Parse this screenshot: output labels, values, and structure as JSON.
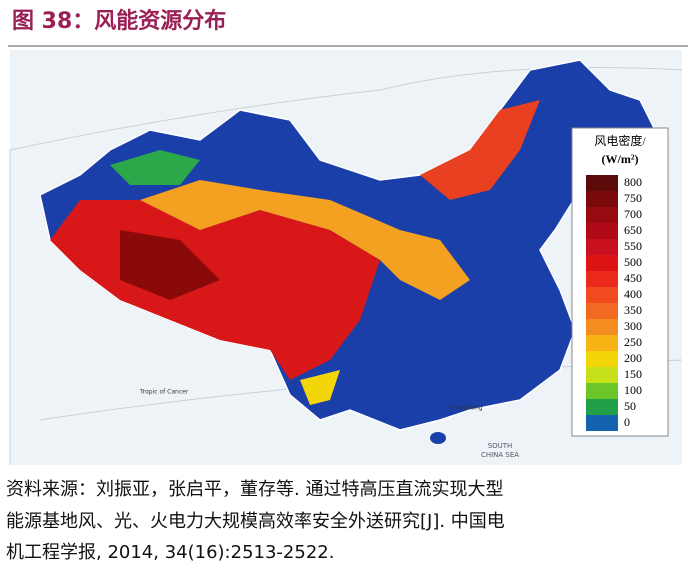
{
  "header": {
    "title": "图 38：风能资源分布"
  },
  "legend": {
    "title": [
      "风电密度/",
      "(W/m²)"
    ],
    "levels": [
      {
        "label": "800",
        "color": "#5c0a0a"
      },
      {
        "label": "750",
        "color": "#7a0a0a"
      },
      {
        "label": "700",
        "color": "#960a10"
      },
      {
        "label": "650",
        "color": "#b00a18"
      },
      {
        "label": "550",
        "color": "#c8101e"
      },
      {
        "label": "500",
        "color": "#dc1414"
      },
      {
        "label": "450",
        "color": "#ec2a1c"
      },
      {
        "label": "400",
        "color": "#f04a1e"
      },
      {
        "label": "350",
        "color": "#f26a22"
      },
      {
        "label": "300",
        "color": "#f48c22"
      },
      {
        "label": "250",
        "color": "#f8b414"
      },
      {
        "label": "200",
        "color": "#f2d60a"
      },
      {
        "label": "150",
        "color": "#c6e01a"
      },
      {
        "label": "100",
        "color": "#6cc62a"
      },
      {
        "label": "50",
        "color": "#22a048"
      },
      {
        "label": "0",
        "color": "#1462b0"
      }
    ]
  },
  "map_labels": {
    "sea": [
      "SOUTH",
      "CHINA SEA"
    ],
    "tropic": "Tropic of Cancer",
    "city": "Hong Kong"
  },
  "source": {
    "lines": [
      "资料来源：刘振亚，张启平，董存等. 通过特高压直流实现大型",
      "能源基地风、光、火电力大规模高效率安全外送研究[J]. 中国电",
      "机工程学报, 2014, 34(16):2513-2522."
    ]
  }
}
